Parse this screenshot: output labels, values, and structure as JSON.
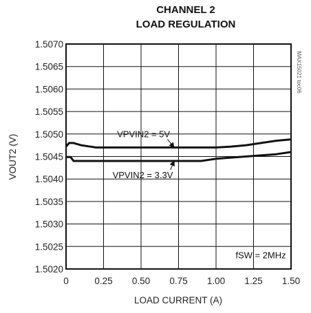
{
  "chart_data": {
    "type": "line",
    "title": "CHANNEL 2",
    "subtitle": "LOAD REGULATION",
    "xlabel": "LOAD CURRENT (A)",
    "ylabel": "VOUT2 (V)",
    "xlim": [
      0,
      1.5
    ],
    "ylim": [
      1.502,
      1.507
    ],
    "grid": true,
    "x_ticks": [
      "0",
      "0.25",
      "0.50",
      "0.75",
      "1.00",
      "1.25",
      "1.50"
    ],
    "x_tick_values": [
      0,
      0.25,
      0.5,
      0.75,
      1.0,
      1.25,
      1.5
    ],
    "y_ticks": [
      "1.5020",
      "1.5025",
      "1.5030",
      "1.5035",
      "1.5040",
      "1.5045",
      "1.5050",
      "1.5055",
      "1.5060",
      "1.5065",
      "1.5070"
    ],
    "y_tick_values": [
      1.502,
      1.5025,
      1.503,
      1.5035,
      1.504,
      1.5045,
      1.505,
      1.5055,
      1.506,
      1.5065,
      1.507
    ],
    "series": [
      {
        "name": "VPVIN2 = 5V",
        "x": [
          0,
          0.02,
          0.05,
          0.1,
          0.2,
          0.4,
          0.6,
          0.8,
          1.0,
          1.1,
          1.2,
          1.3,
          1.4,
          1.5
        ],
        "y": [
          1.50472,
          1.5048,
          1.5048,
          1.50475,
          1.5047,
          1.5047,
          1.5047,
          1.5047,
          1.5047,
          1.50472,
          1.50475,
          1.5048,
          1.50485,
          1.50488
        ]
      },
      {
        "name": "VPVIN2 = 3.3V",
        "x": [
          0,
          0.03,
          0.05,
          0.1,
          0.3,
          0.5,
          0.7,
          0.9,
          1.0,
          1.2,
          1.4,
          1.5
        ],
        "y": [
          1.50449,
          1.50449,
          1.5044,
          1.5044,
          1.5044,
          1.5044,
          1.5044,
          1.5044,
          1.50445,
          1.5045,
          1.50455,
          1.5046
        ]
      }
    ],
    "annotations": [
      {
        "text": "VPVIN2 = 5V",
        "label_x": 0.34,
        "label_y": 1.50493,
        "arrow_to": [
          0.72,
          1.5047
        ]
      },
      {
        "text": "VPVIN2 = 3.3V",
        "label_x": 0.31,
        "label_y": 1.50402,
        "arrow_to": [
          0.72,
          1.5044
        ]
      },
      {
        "text": "fSW = 2MHz",
        "label_x": 1.13,
        "label_y": 1.50224
      }
    ],
    "side_label": "MAX15021 toc06"
  }
}
